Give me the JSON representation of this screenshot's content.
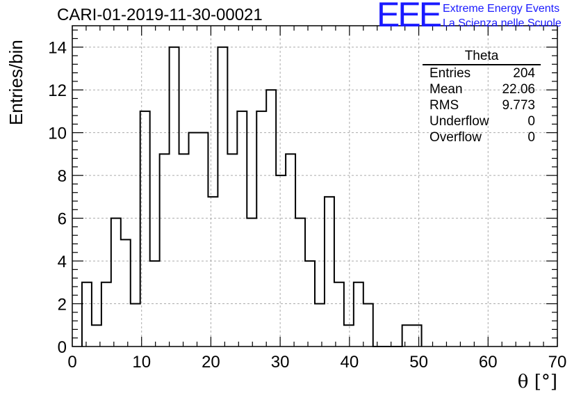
{
  "header": {
    "title": "CARI-01-2019-11-30-00021",
    "logo_text": "EEE",
    "logo_line1": "Extreme Energy Events",
    "logo_line2": "La Scienza nelle Scuole"
  },
  "stats_box": {
    "title": "Theta",
    "rows": [
      {
        "label": "Entries",
        "value": "204"
      },
      {
        "label": "Mean",
        "value": "22.06"
      },
      {
        "label": "RMS",
        "value": "9.773"
      },
      {
        "label": "Underflow",
        "value": "0"
      },
      {
        "label": "Overflow",
        "value": "0"
      }
    ]
  },
  "colors": {
    "line": "#000000",
    "grid": "#aaaaaa",
    "logo": "#1a1aff"
  },
  "chart_data": {
    "type": "bar",
    "histogram": true,
    "title": "CARI-01-2019-11-30-00021",
    "xlabel": "θ [°]",
    "ylabel": "Entries/bin",
    "xlim": [
      0,
      70
    ],
    "ylim": [
      0,
      15
    ],
    "bin_width": 1.4,
    "bin_start": 1.4,
    "x_ticks": [
      0,
      10,
      20,
      30,
      40,
      50,
      60,
      70
    ],
    "y_ticks": [
      0,
      2,
      4,
      6,
      8,
      10,
      12,
      14
    ],
    "grid": true,
    "values": [
      3,
      1,
      3,
      6,
      5,
      2,
      11,
      4,
      9,
      14,
      9,
      10,
      10,
      7,
      14,
      9,
      11,
      6,
      11,
      12,
      8,
      9,
      6,
      4,
      2,
      7,
      3,
      1,
      3,
      2,
      0,
      0,
      0,
      1,
      1
    ]
  }
}
